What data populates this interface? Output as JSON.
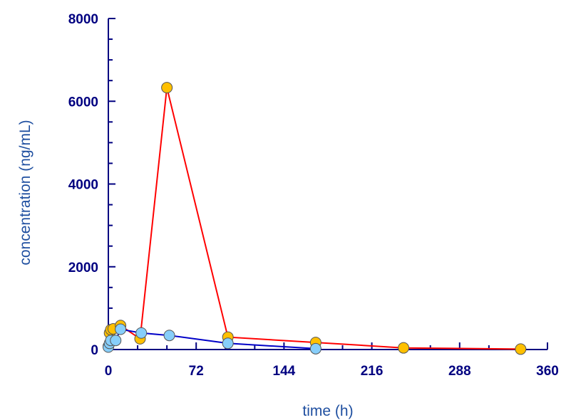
{
  "chart_data": {
    "type": "line",
    "title": "",
    "xlabel": "time (h)",
    "ylabel": "concentration (ng/mL)",
    "xlim": [
      0,
      360
    ],
    "ylim": [
      0,
      8000
    ],
    "x_ticks": [
      0,
      72,
      144,
      216,
      288,
      360
    ],
    "x_tick_labels": [
      "0",
      "72",
      "144",
      "216",
      "288",
      "360"
    ],
    "y_ticks": [
      0,
      2000,
      4000,
      6000,
      8000
    ],
    "y_tick_labels": [
      "0",
      "2000",
      "4000",
      "6000",
      "8000"
    ],
    "grid": false,
    "legend": "none",
    "series": [
      {
        "color": "#ff0000",
        "marker_color": "#ffc000",
        "points": [
          {
            "x": 0,
            "y": 80
          },
          {
            "x": 1,
            "y": 400
          },
          {
            "x": 2,
            "y": 480
          },
          {
            "x": 4,
            "y": 500
          },
          {
            "x": 10,
            "y": 580
          },
          {
            "x": 26,
            "y": 260
          },
          {
            "x": 48,
            "y": 6330
          },
          {
            "x": 98,
            "y": 300
          },
          {
            "x": 170,
            "y": 170
          },
          {
            "x": 242,
            "y": 40
          },
          {
            "x": 338,
            "y": 10
          }
        ]
      },
      {
        "color": "#0000c8",
        "marker_color": "#87cefa",
        "points": [
          {
            "x": 0,
            "y": 60
          },
          {
            "x": 1,
            "y": 150
          },
          {
            "x": 2,
            "y": 220
          },
          {
            "x": 6,
            "y": 220
          },
          {
            "x": 10,
            "y": 490
          },
          {
            "x": 27,
            "y": 400
          },
          {
            "x": 50,
            "y": 340
          },
          {
            "x": 98,
            "y": 150
          },
          {
            "x": 170,
            "y": 20
          }
        ]
      }
    ],
    "colors": {
      "axis": "#000080",
      "tick_label": "#000080",
      "axis_title": "#1f4fa0"
    }
  }
}
